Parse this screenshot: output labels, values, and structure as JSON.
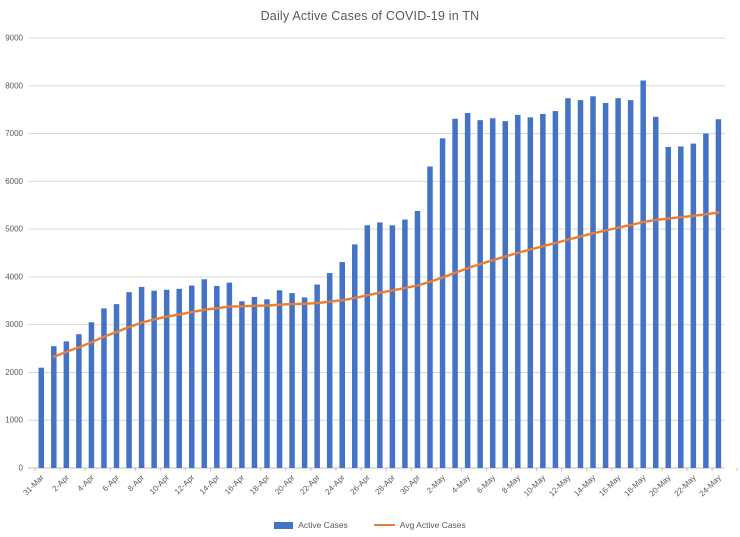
{
  "chart_data": {
    "type": "bar",
    "title": "Daily Active Cases of COVID-19 in TN",
    "xlabel": "",
    "ylabel": "",
    "ylim": [
      0,
      9000
    ],
    "ytick_interval": 1000,
    "xtick_every": 2,
    "grid": true,
    "legend_position": "bottom",
    "categories": [
      "31-Mar",
      "1-Apr",
      "2-Apr",
      "3-Apr",
      "4-Apr",
      "5-Apr",
      "6-Apr",
      "7-Apr",
      "8-Apr",
      "9-Apr",
      "10-Apr",
      "11-Apr",
      "12-Apr",
      "13-Apr",
      "14-Apr",
      "15-Apr",
      "16-Apr",
      "17-Apr",
      "18-Apr",
      "19-Apr",
      "20-Apr",
      "21-Apr",
      "22-Apr",
      "23-Apr",
      "24-Apr",
      "25-Apr",
      "26-Apr",
      "27-Apr",
      "28-Apr",
      "29-Apr",
      "30-Apr",
      "1-May",
      "2-May",
      "3-May",
      "4-May",
      "5-May",
      "6-May",
      "7-May",
      "8-May",
      "9-May",
      "10-May",
      "11-May",
      "12-May",
      "13-May",
      "14-May",
      "15-May",
      "16-May",
      "17-May",
      "18-May",
      "19-May",
      "20-May",
      "21-May",
      "22-May",
      "23-May",
      "24-May"
    ],
    "series": [
      {
        "name": "Active Cases",
        "type": "bar",
        "color": "#4472C4",
        "values": [
          2100,
          2550,
          2650,
          2800,
          3050,
          3340,
          3430,
          3680,
          3790,
          3710,
          3730,
          3750,
          3820,
          3950,
          3810,
          3880,
          3490,
          3580,
          3530,
          3720,
          3660,
          3570,
          3840,
          4080,
          4310,
          4680,
          5080,
          5140,
          5080,
          5200,
          5380,
          6310,
          6900,
          7310,
          7430,
          7280,
          7320,
          7260,
          7390,
          7340,
          7410,
          7470,
          7740,
          7700,
          7780,
          7640,
          7740,
          7700,
          8110,
          7350,
          6720,
          6730,
          6790,
          7000,
          7300
        ]
      },
      {
        "name": "Avg Active Cases",
        "type": "line",
        "color": "#ED7D31",
        "values": [
          null,
          2325,
          2433,
          2525,
          2630,
          2748,
          2846,
          2950,
          3043,
          3110,
          3166,
          3215,
          3262,
          3311,
          3344,
          3378,
          3384,
          3395,
          3402,
          3418,
          3430,
          3436,
          3453,
          3480,
          3513,
          3558,
          3614,
          3669,
          3717,
          3767,
          3819,
          3897,
          3988,
          4085,
          4181,
          4267,
          4349,
          4426,
          4502,
          4573,
          4642,
          4710,
          4780,
          4846,
          4912,
          4971,
          5030,
          5085,
          5147,
          5191,
          5221,
          5250,
          5279,
          5311,
          5347
        ]
      }
    ]
  },
  "colors": {
    "background": "#ffffff",
    "gridline": "#d9d9d9",
    "axis_line": "#bfbfbf",
    "tick": "#bfbfbf",
    "text": "#595959"
  }
}
